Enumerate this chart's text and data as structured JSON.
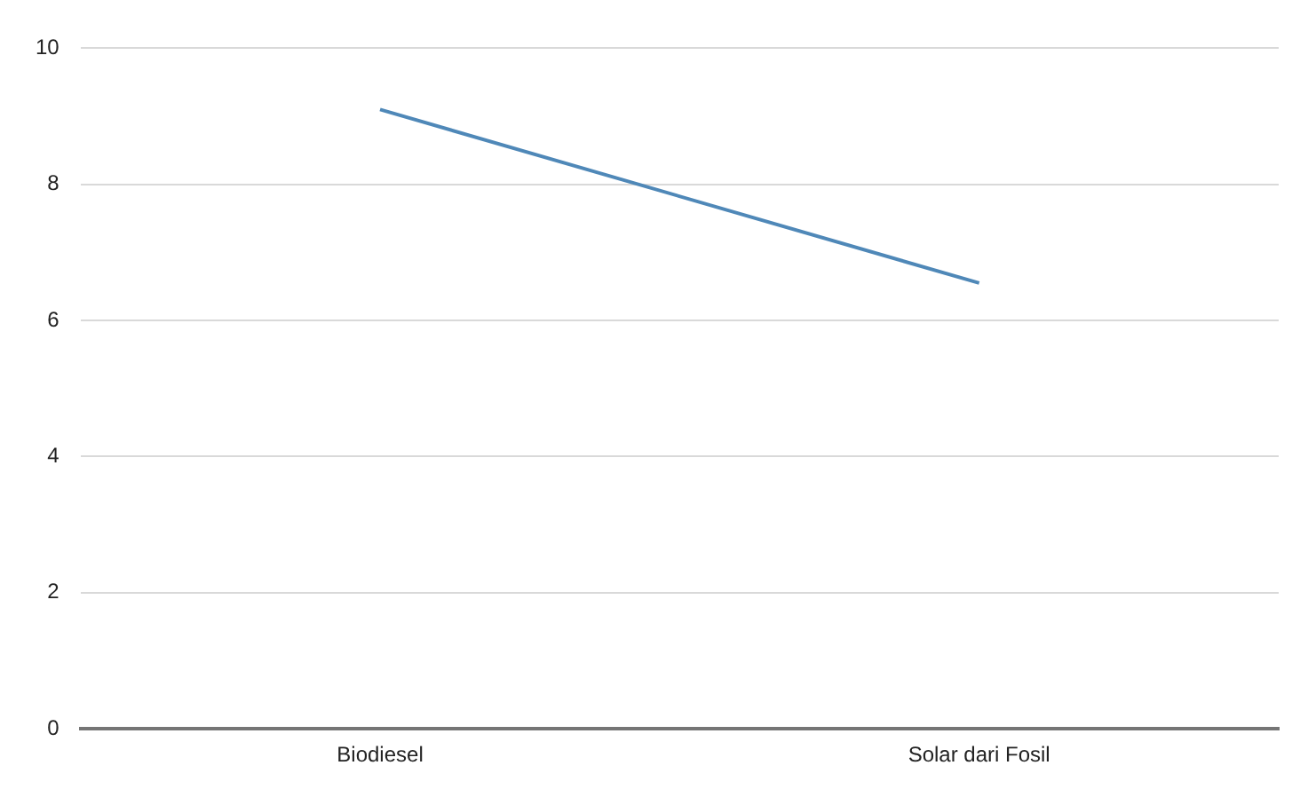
{
  "chart_data": {
    "type": "line",
    "categories": [
      "Biodiesel",
      "Solar dari Fosil"
    ],
    "series": [
      {
        "color": "#4f88b8",
        "values": [
          9.1,
          6.55
        ]
      }
    ],
    "ylim": [
      0,
      10
    ],
    "yticks": [
      0,
      2,
      4,
      6,
      8,
      10
    ],
    "grid": "y",
    "legend": false,
    "marker": "none",
    "line_style": "solid"
  }
}
